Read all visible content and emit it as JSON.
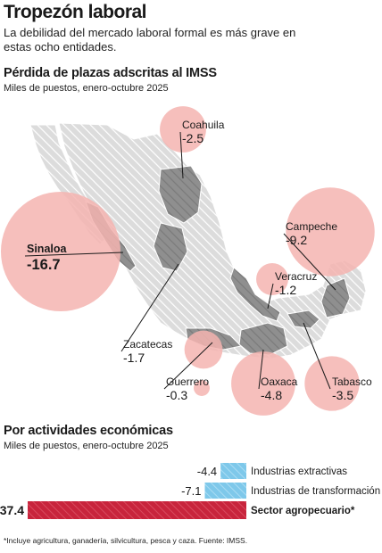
{
  "header": {
    "title": "Tropezón laboral",
    "subtitle": "La debilidad del mercado laboral formal es más grave en estas ocho entidades."
  },
  "map_section": {
    "title": "Pérdida de plazas adscritas al IMSS",
    "subtitle": "Miles de puestos, enero-octubre 2025"
  },
  "bars_section": {
    "title": "Por actividades económicas",
    "subtitle": "Miles de puestos, enero-octubre 2025"
  },
  "footnote": "*Incluye agricultura, ganadería, silvicultura, pesca y caza. Fuente: IMSS.",
  "colors": {
    "bubble": "#f4b4b0",
    "highlight_state": "#8c8c8c",
    "other_state": "#d9d9d9",
    "hatch": "#ffffff",
    "bar_blue": "#7ec8ea",
    "bar_red": "#c8243c"
  },
  "chart_data": [
    {
      "type": "bubble-map",
      "title": "Pérdida de plazas adscritas al IMSS",
      "unit": "Miles de puestos, enero-octubre 2025",
      "points": [
        {
          "name": "Coahuila",
          "value": -2.5
        },
        {
          "name": "Campeche",
          "value": -9.2
        },
        {
          "name": "Sinaloa",
          "value": -16.7
        },
        {
          "name": "Veracruz",
          "value": -1.2
        },
        {
          "name": "Zacatecas",
          "value": -1.7
        },
        {
          "name": "Guerrero",
          "value": -0.3
        },
        {
          "name": "Oaxaca",
          "value": -4.8
        },
        {
          "name": "Tabasco",
          "value": -3.5
        }
      ]
    },
    {
      "type": "bar",
      "title": "Por actividades económicas",
      "unit": "Miles de puestos, enero-octubre 2025",
      "categories": [
        "Industrias extractivas",
        "Industrias de transformación",
        "Sector agropecuario*"
      ],
      "values": [
        -4.4,
        -7.1,
        -37.4
      ],
      "colors": [
        "#7ec8ea",
        "#7ec8ea",
        "#c8243c"
      ]
    }
  ]
}
